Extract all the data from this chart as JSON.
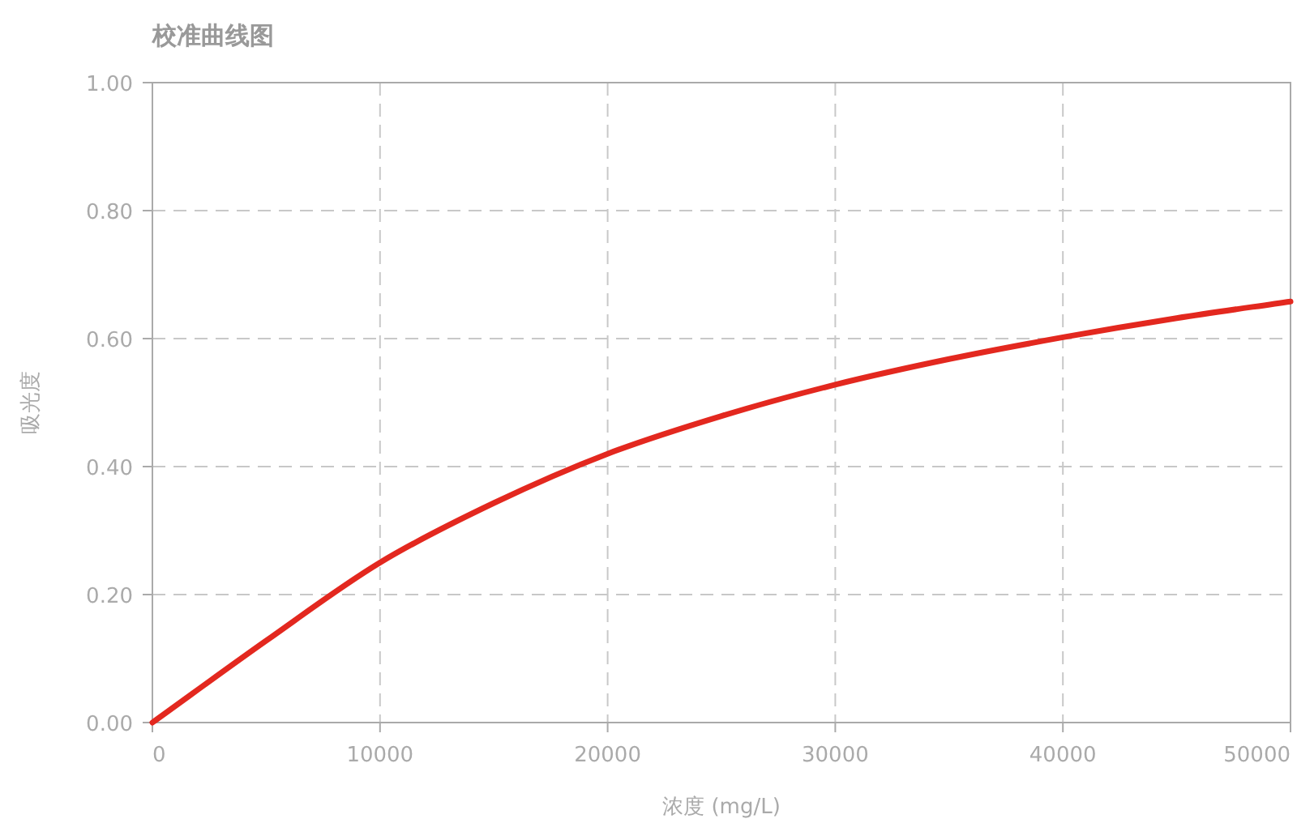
{
  "chart_data": {
    "type": "line",
    "title": "校准曲线图",
    "xlabel": "浓度 (mg/L)",
    "ylabel": "吸光度",
    "x": [
      0,
      5000,
      10000,
      15000,
      20000,
      25000,
      30000,
      35000,
      40000,
      45000,
      50000
    ],
    "series": [
      {
        "color": "#e3281f",
        "values": [
          0,
          0.128,
          0.25,
          0.343,
          0.42,
          0.479,
          0.528,
          0.568,
          0.602,
          0.632,
          0.658
        ]
      }
    ],
    "xlim": [
      0,
      50000
    ],
    "xticks": [
      0,
      10000,
      20000,
      30000,
      40000,
      50000
    ],
    "ylim": [
      0,
      1
    ],
    "yticks": [
      {
        "value": 0,
        "label": "0.00"
      },
      {
        "value": 0.2,
        "label": "0.20"
      },
      {
        "value": 0.4,
        "label": "0.40"
      },
      {
        "value": 0.6,
        "label": "0.60"
      },
      {
        "value": 0.8,
        "label": "0.80"
      },
      {
        "value": 1,
        "label": "1.00"
      }
    ],
    "grid": true,
    "marker": "none",
    "line_style": "solid"
  }
}
